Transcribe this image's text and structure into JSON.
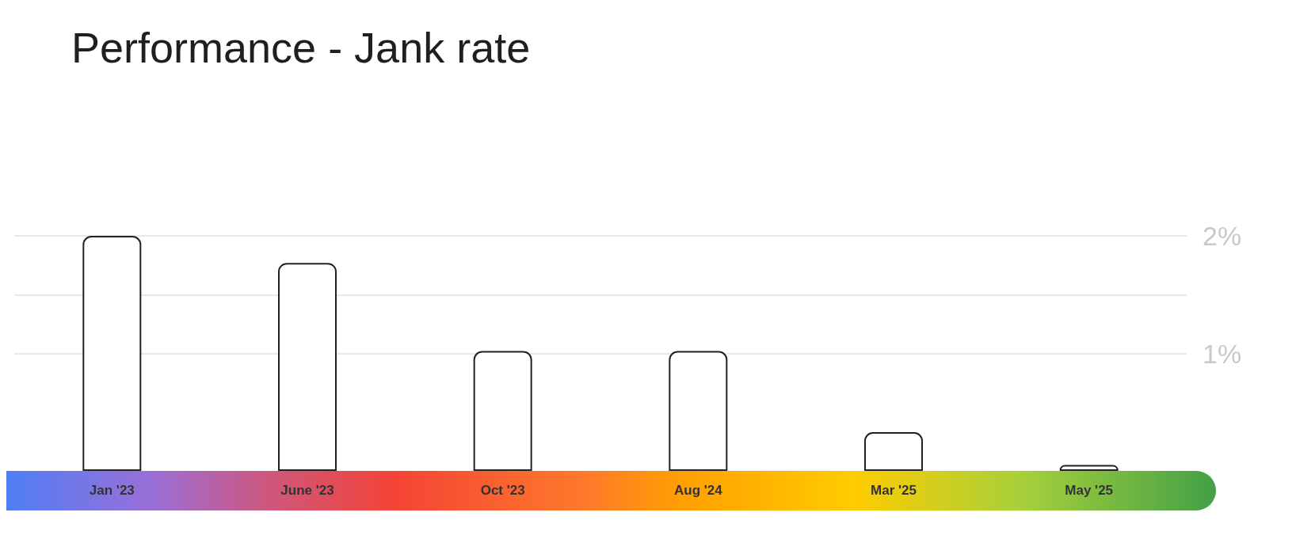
{
  "chart_data": {
    "type": "bar",
    "title": "Performance - Jank rate",
    "categories": [
      "Jan '23",
      "June '23",
      "Oct '23",
      "Aug '24",
      "Mar '25",
      "May '25"
    ],
    "values": [
      2,
      1.77,
      1.02,
      1.02,
      0.33,
      0.05
    ],
    "color": "#ffffff",
    "ylim": [
      0,
      2
    ],
    "yticks": [
      {
        "value": 1,
        "label": "1%"
      },
      {
        "value": 1.5,
        "label": null
      },
      {
        "value": 2,
        "label": "2%"
      }
    ],
    "grid": "y"
  }
}
